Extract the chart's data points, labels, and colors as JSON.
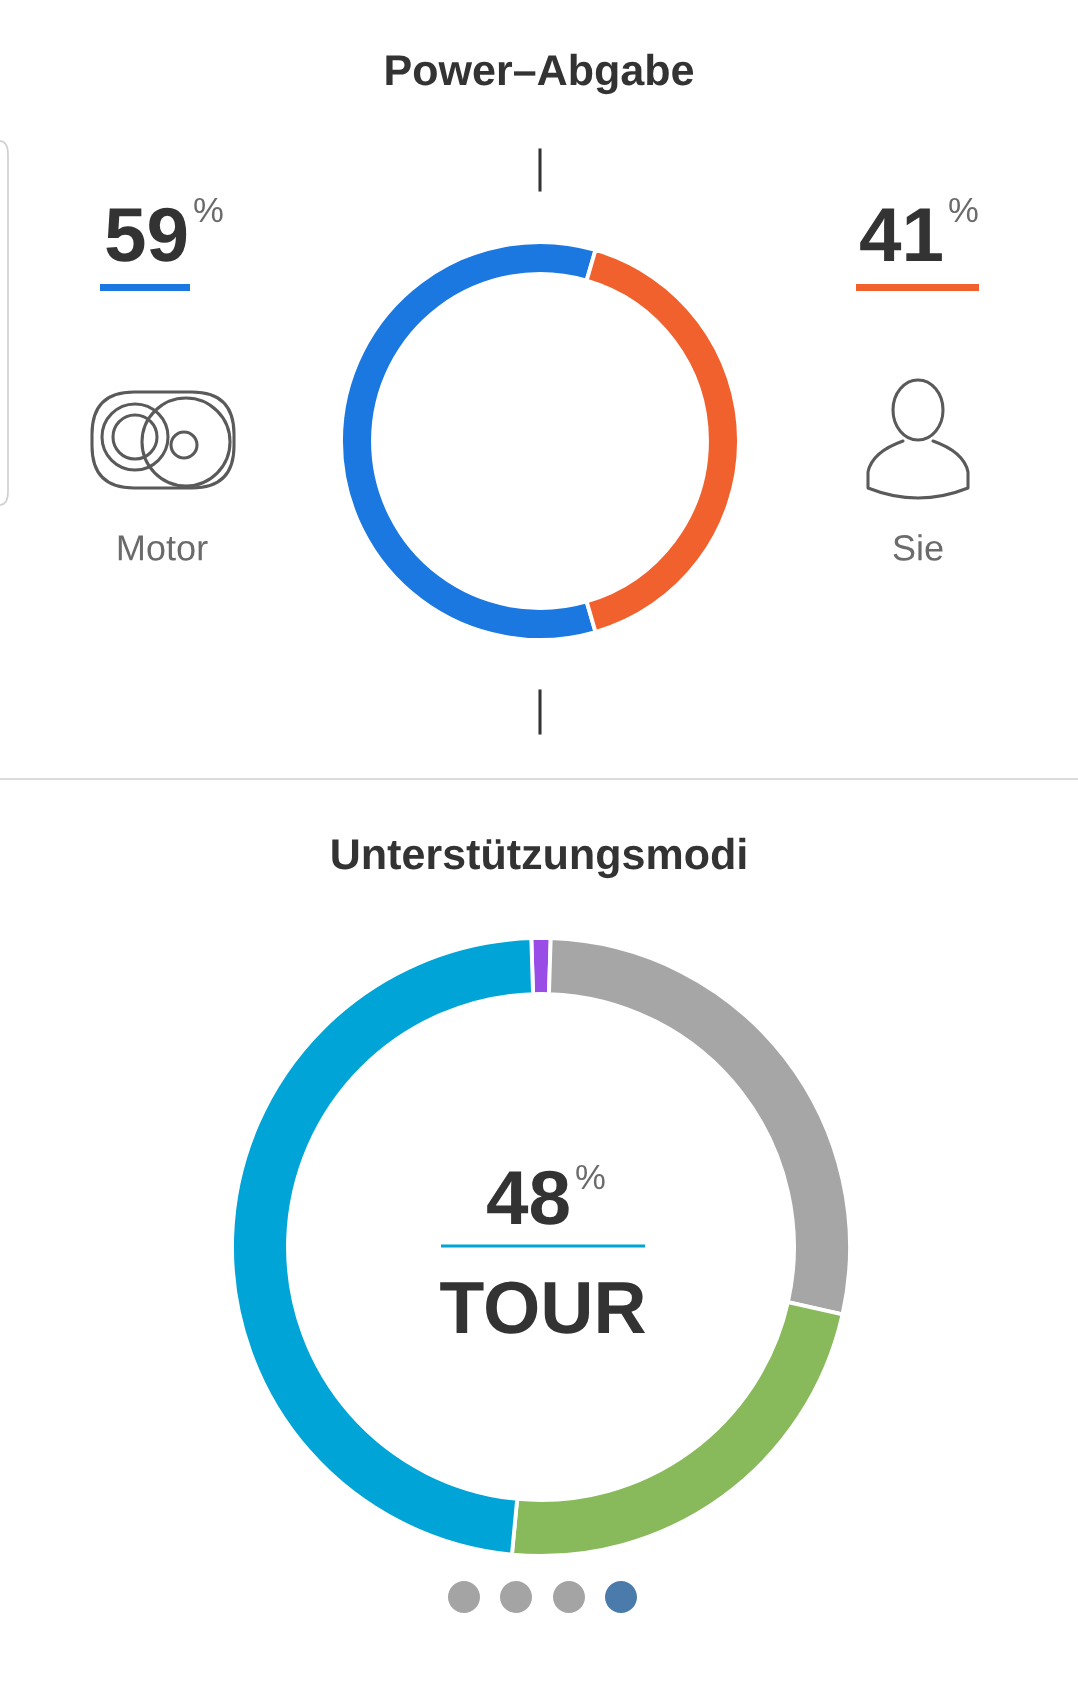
{
  "chart_data": [
    {
      "type": "donut",
      "title": "Power–Abgabe",
      "categories": [
        "Motor",
        "Sie"
      ],
      "values": [
        59,
        41
      ],
      "colors": [
        "#1b78e0",
        "#f0612d"
      ],
      "value_labels": [
        "59$^{%}$",
        "41$^{%}$"
      ]
    },
    {
      "type": "donut",
      "title": "Unterstützungsmodi",
      "categories": [
        null,
        null,
        null,
        "TOUR"
      ],
      "values": [
        1,
        28,
        23,
        48
      ],
      "colors": [
        "#9a4de6",
        "#a6a6a6",
        "#88b95a",
        "#00a4d6"
      ],
      "value_labels": [
        null,
        null,
        null,
        "48$^{%}$"
      ]
    }
  ]
}
